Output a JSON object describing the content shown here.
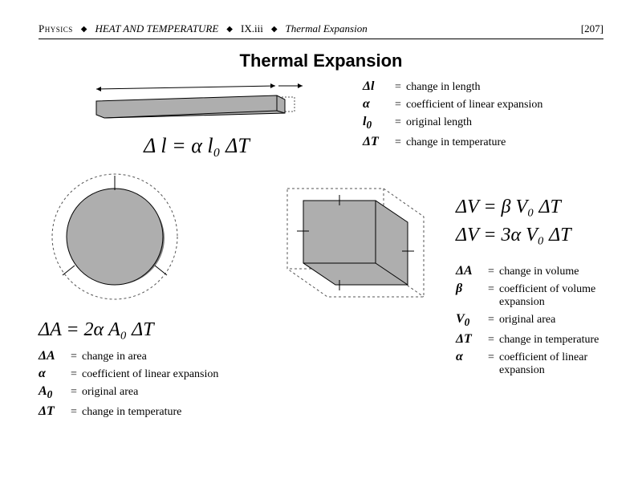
{
  "header": {
    "bc1": "Physics",
    "bc2": "HEAT AND TEMPERATURE",
    "bc3": "IX.iii",
    "bc4": "Thermal Expansion",
    "page": "[207]"
  },
  "title": "Thermal Expansion",
  "colors": {
    "fill": "#aeaeae",
    "stroke": "#000000",
    "dash": "#555555"
  },
  "linear": {
    "formula": "Δ l   =   α l₀ ΔT",
    "defs": [
      {
        "sym": "Δ<i>l</i>",
        "txt": "change in length"
      },
      {
        "sym": "α",
        "txt": "coefficient of linear expansion"
      },
      {
        "sym": "<i>l</i><sub>0</sub>",
        "txt": "original length"
      },
      {
        "sym": "Δ<i>T</i>",
        "txt": "change in temperature"
      }
    ]
  },
  "area": {
    "formula": "ΔA = 2α A₀ ΔT",
    "defs": [
      {
        "sym": "Δ<i>A</i>",
        "txt": "change in area"
      },
      {
        "sym": "α",
        "txt": "coefficient of linear expansion"
      },
      {
        "sym": "<i>A</i><sub>0</sub>",
        "txt": "original area"
      },
      {
        "sym": "Δ<i>T</i>",
        "txt": "change in temperature"
      }
    ]
  },
  "volume": {
    "formula1": "ΔV =  β  V₀ ΔT",
    "formula2": "ΔV = 3α V₀ ΔT",
    "defs": [
      {
        "sym": "Δ<i>A</i>",
        "txt": "change in volume"
      },
      {
        "sym": "β",
        "txt": "coefficient of volume expansion"
      },
      {
        "sym": "<i>V</i><sub>0</sub>",
        "txt": "original area"
      },
      {
        "sym": "Δ<i>T</i>",
        "txt": "change in temperature"
      },
      {
        "sym": "α",
        "txt": "coefficient of linear expansion"
      }
    ]
  }
}
